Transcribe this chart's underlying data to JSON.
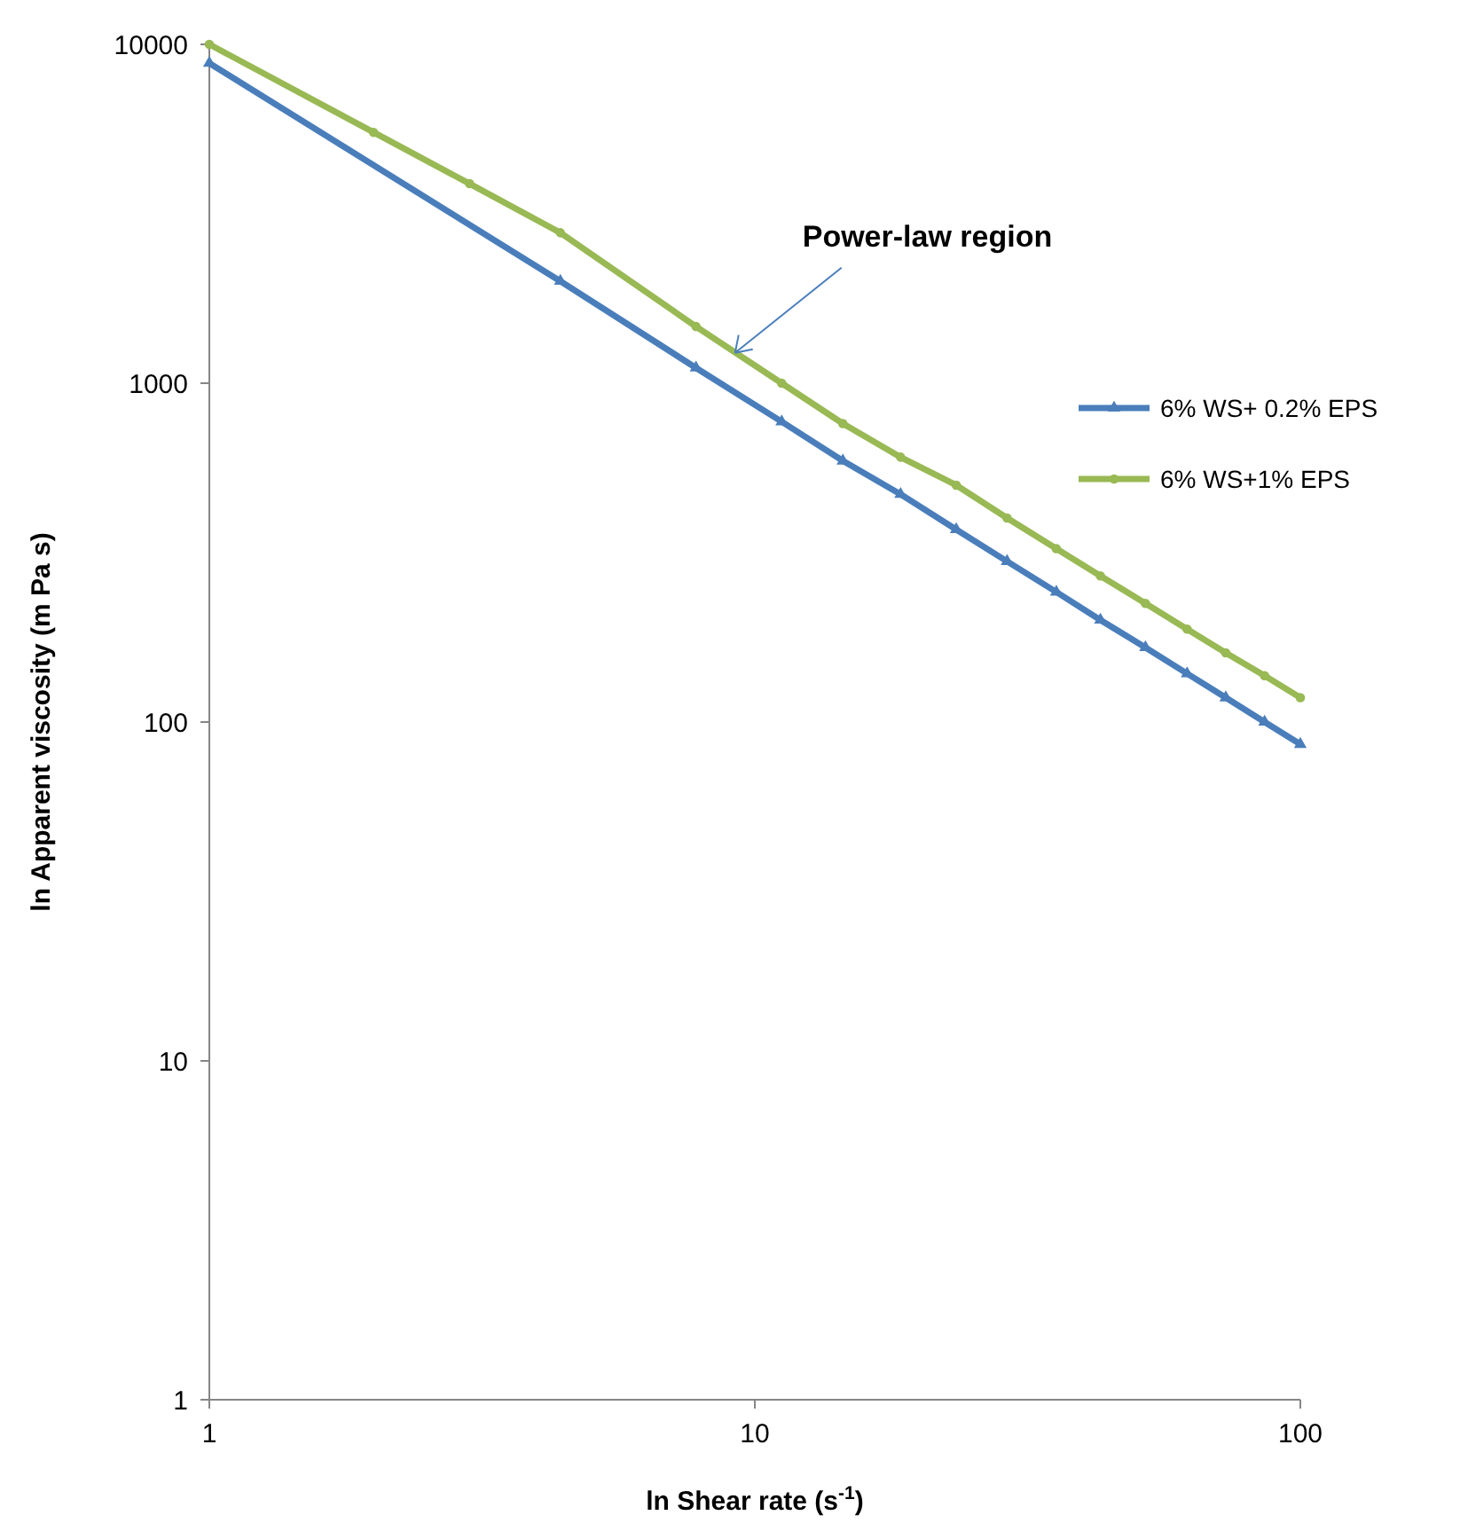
{
  "chart_data": {
    "type": "line",
    "xlabel": "ln Shear rate (s$^{-1}$)",
    "ylabel": "ln Apparent viscosity (m Pa s)",
    "log": "xy",
    "xlim": [
      1,
      100
    ],
    "ylim": [
      1,
      10000
    ],
    "xticks": [
      1,
      10,
      100
    ],
    "yticks": [
      1,
      10,
      100,
      1000,
      10000
    ],
    "grid": false,
    "legend": "right",
    "annotations": [
      {
        "text": "Power-law region",
        "x": 9.2,
        "y": 1230
      }
    ],
    "series": [
      {
        "name": "6% WS+ 0.2% EPS",
        "color": "#4a7ebb",
        "marker": "triangle",
        "x": [
          1,
          4.4,
          7.8,
          11.2,
          14.5,
          18.5,
          23.4,
          29,
          35.7,
          43,
          52,
          62,
          73,
          86,
          100
        ],
        "values": [
          8800,
          2000,
          1110,
          770,
          590,
          470,
          370,
          298,
          242,
          200,
          166,
          139,
          118,
          100,
          86
        ]
      },
      {
        "name": "6% WS+1% EPS",
        "color": "#98b954",
        "marker": "circle",
        "x": [
          1,
          2,
          3,
          4.4,
          7.8,
          11.2,
          14.5,
          18.5,
          23.4,
          29,
          35.7,
          43,
          52,
          62,
          73,
          86,
          100
        ],
        "values": [
          10000,
          5500,
          3880,
          2780,
          1470,
          1000,
          760,
          605,
          500,
          400,
          325,
          270,
          224,
          188,
          160,
          137,
          118
        ]
      }
    ]
  }
}
